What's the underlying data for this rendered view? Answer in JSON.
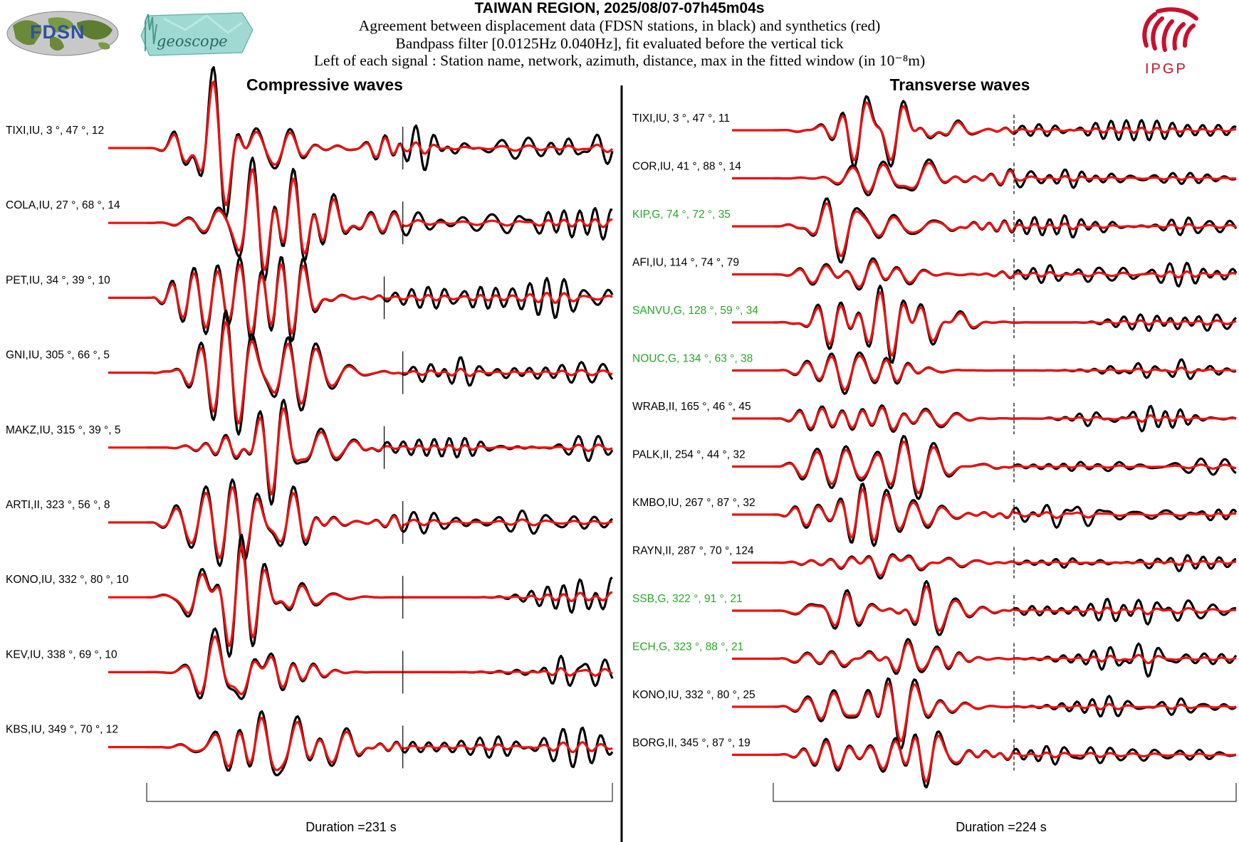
{
  "header": {
    "title": "TAIWAN REGION, 2025/08/07-07h45m04s",
    "line1": "Agreement between displacement data (FDSN stations, in black) and synthetics (red)",
    "line2": "Bandpass filter [0.0125Hz 0.040Hz], fit evaluated before the vertical tick",
    "line3": "Left of each signal : Station name, network, azimuth, distance, max in the fitted window (in 10⁻⁸m)"
  },
  "logos": {
    "fdsn": "FDSN",
    "geoscope": "geoscope",
    "ipgp": "IPGP"
  },
  "colors": {
    "data_trace": "#000000",
    "synthetic_trace": "#ee1111",
    "station_default": "#000000",
    "station_highlight": "#22aa22",
    "ipgp_red": "#c8102e",
    "geoscope_teal": "#7fc8c0",
    "fdsn_blue": "#3050a0"
  },
  "chart_data": [
    {
      "type": "line",
      "title": "Compressive waves",
      "duration_label": "Duration =231 s",
      "traces": [
        {
          "station": "TIXI,IU, 3 °, 47 °, 12",
          "highlight": false,
          "fit": 0.55,
          "amp": 1.0
        },
        {
          "station": "COLA,IU, 27 °, 68 °, 14",
          "highlight": false,
          "fit": 0.55,
          "amp": 0.85
        },
        {
          "station": "PET,IU, 34 °, 39 °, 10",
          "highlight": false,
          "fit": 0.51,
          "amp": 0.95
        },
        {
          "station": "GNI,IU, 305 °, 66 °, 5",
          "highlight": false,
          "fit": 0.55,
          "amp": 0.9
        },
        {
          "station": "MAKZ,IU, 315 °, 39 °, 5",
          "highlight": false,
          "fit": 0.51,
          "amp": 0.95
        },
        {
          "station": "ARTI,II, 323 °, 56 °, 8",
          "highlight": false,
          "fit": 0.55,
          "amp": 0.9
        },
        {
          "station": "KONO,IU, 332 °, 80 °, 10",
          "highlight": false,
          "fit": 0.55,
          "amp": 0.85
        },
        {
          "station": "KEV,IU, 338 °, 69 °, 10",
          "highlight": false,
          "fit": 0.55,
          "amp": 0.9
        },
        {
          "station": "KBS,IU, 349 °, 70 °, 12",
          "highlight": false,
          "fit": 0.55,
          "amp": 0.95
        }
      ]
    },
    {
      "type": "line",
      "title": "Transverse waves",
      "duration_label": "Duration =224 s",
      "traces": [
        {
          "station": "TIXI,IU, 3 °, 47 °, 11",
          "highlight": false,
          "fit": 0.52,
          "amp": 0.55
        },
        {
          "station": "COR,IU, 41 °, 88 °, 14",
          "highlight": false,
          "fit": 0.52,
          "amp": 0.6
        },
        {
          "station": "KIP,G, 74 °, 72 °, 35",
          "highlight": true,
          "fit": 0.52,
          "amp": 0.6
        },
        {
          "station": "AFI,IU, 114 °, 74 °, 79",
          "highlight": false,
          "fit": 0.52,
          "amp": 0.45
        },
        {
          "station": "SANVU,G, 128 °, 59 °, 34",
          "highlight": true,
          "fit": 0.52,
          "amp": 0.55
        },
        {
          "station": "NOUC,G, 134 °, 63 °, 38",
          "highlight": true,
          "fit": 0.52,
          "amp": 0.55
        },
        {
          "station": "WRAB,II, 165 °, 46 °, 45",
          "highlight": false,
          "fit": 0.52,
          "amp": 0.5
        },
        {
          "station": "PALK,II, 254 °, 44 °, 32",
          "highlight": false,
          "fit": 0.52,
          "amp": 0.55
        },
        {
          "station": "KMBO,IU, 267 °, 87 °, 32",
          "highlight": false,
          "fit": 0.52,
          "amp": 0.55
        },
        {
          "station": "RAYN,II, 287 °, 70 °, 124",
          "highlight": false,
          "fit": 0.52,
          "amp": 0.35
        },
        {
          "station": "SSB,G, 322 °, 91 °, 21",
          "highlight": true,
          "fit": 0.52,
          "amp": 0.6
        },
        {
          "station": "ECH,G, 323 °, 88 °, 21",
          "highlight": true,
          "fit": 0.52,
          "amp": 0.6
        },
        {
          "station": "KONO,IU, 332 °, 80 °, 25",
          "highlight": false,
          "fit": 0.52,
          "amp": 0.55
        },
        {
          "station": "BORG,II, 345 °, 87 °, 19",
          "highlight": false,
          "fit": 0.52,
          "amp": 0.5
        }
      ]
    }
  ]
}
